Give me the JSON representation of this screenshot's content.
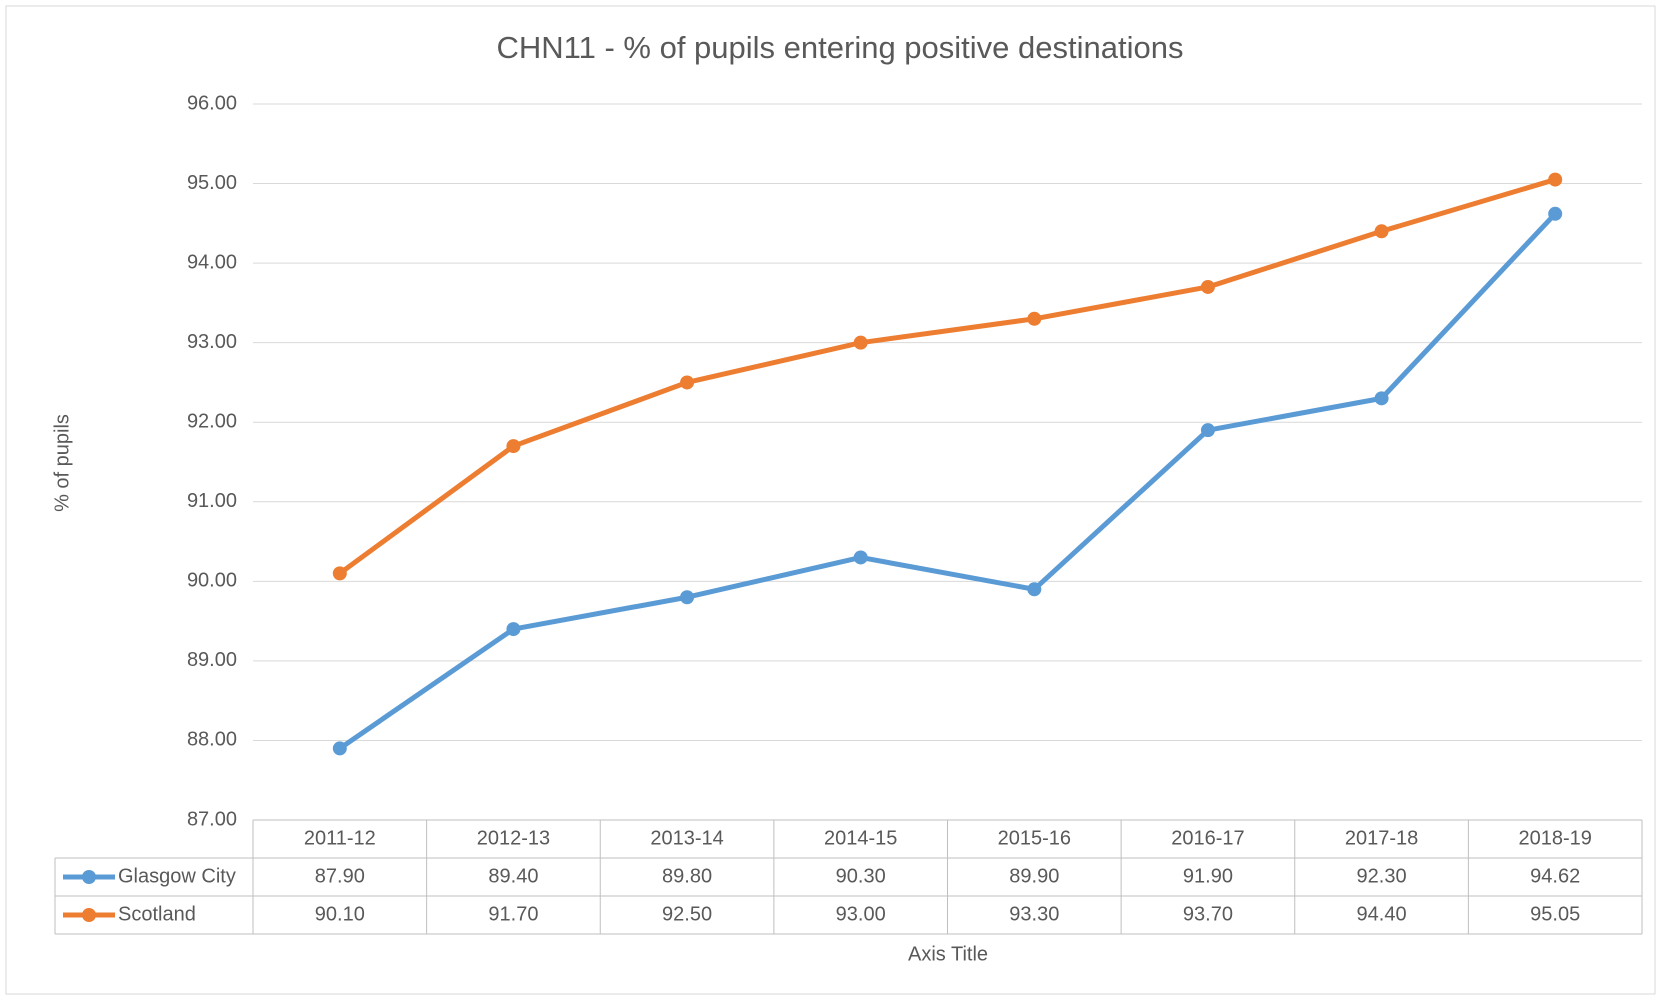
{
  "chart_data": {
    "type": "line",
    "title": "CHN11 -  % of pupils entering positive destinations",
    "y_label": "% of pupils",
    "x_label": "Axis Title",
    "categories": [
      "2011-12",
      "2012-13",
      "2013-14",
      "2014-15",
      "2015-16",
      "2016-17",
      "2017-18",
      "2018-19"
    ],
    "series": [
      {
        "name": "Glasgow City",
        "color": "#5b9bd5",
        "values": [
          87.9,
          89.4,
          89.8,
          90.3,
          89.9,
          91.9,
          92.3,
          94.62
        ],
        "value_labels": [
          "87.90",
          "89.40",
          "89.80",
          "90.30",
          "89.90",
          "91.90",
          "92.30",
          "94.62"
        ]
      },
      {
        "name": "Scotland",
        "color": "#ed7d31",
        "values": [
          90.1,
          91.7,
          92.5,
          93.0,
          93.3,
          93.7,
          94.4,
          95.05
        ],
        "value_labels": [
          "90.10",
          "91.70",
          "92.50",
          "93.00",
          "93.30",
          "93.70",
          "94.40",
          "95.05"
        ]
      }
    ],
    "ylim": [
      87,
      96
    ],
    "yticks": [
      {
        "value": 87,
        "label": "87.00"
      },
      {
        "value": 88,
        "label": "88.00"
      },
      {
        "value": 89,
        "label": "89.00"
      },
      {
        "value": 90,
        "label": "90.00"
      },
      {
        "value": 91,
        "label": "91.00"
      },
      {
        "value": 92,
        "label": "92.00"
      },
      {
        "value": 93,
        "label": "93.00"
      },
      {
        "value": 94,
        "label": "94.00"
      },
      {
        "value": 95,
        "label": "95.00"
      },
      {
        "value": 96,
        "label": "96.00"
      }
    ],
    "grid": true
  }
}
